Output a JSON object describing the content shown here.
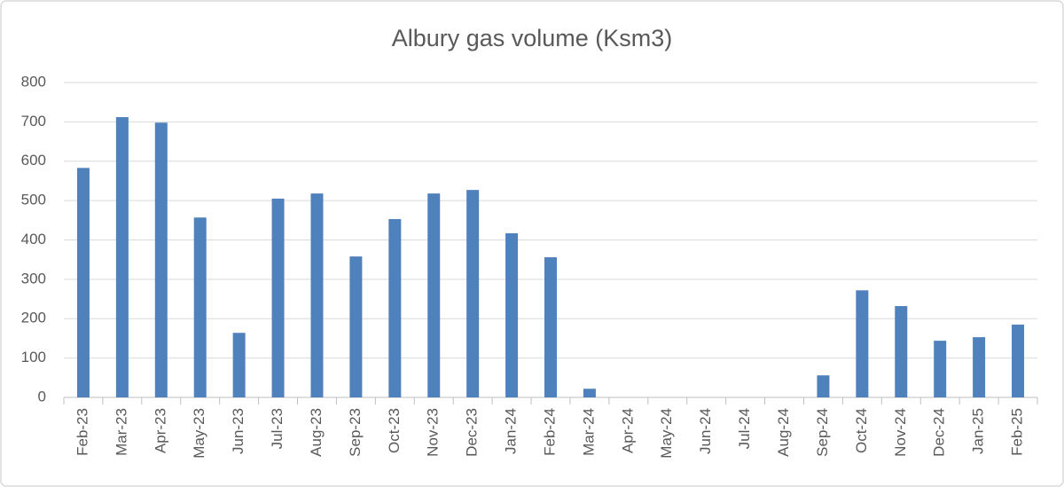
{
  "chart_data": {
    "type": "bar",
    "title": "Albury gas volume (Ksm3)",
    "categories": [
      "Feb-23",
      "Mar-23",
      "Apr-23",
      "May-23",
      "Jun-23",
      "Jul-23",
      "Aug-23",
      "Sep-23",
      "Oct-23",
      "Nov-23",
      "Dec-23",
      "Jan-24",
      "Feb-24",
      "Mar-24",
      "Apr-24",
      "May-24",
      "Jun-24",
      "Jul-24",
      "Aug-24",
      "Sep-24",
      "Oct-24",
      "Nov-24",
      "Dec-24",
      "Jan-25",
      "Feb-25"
    ],
    "values": [
      583,
      712,
      698,
      457,
      164,
      505,
      518,
      358,
      453,
      518,
      527,
      417,
      356,
      22,
      0,
      0,
      0,
      0,
      0,
      56,
      272,
      232,
      144,
      153,
      185
    ],
    "color": "#4f81bd",
    "ylim": [
      0,
      800
    ],
    "yticks": [
      0,
      100,
      200,
      300,
      400,
      500,
      600,
      700,
      800
    ],
    "grid": true
  }
}
